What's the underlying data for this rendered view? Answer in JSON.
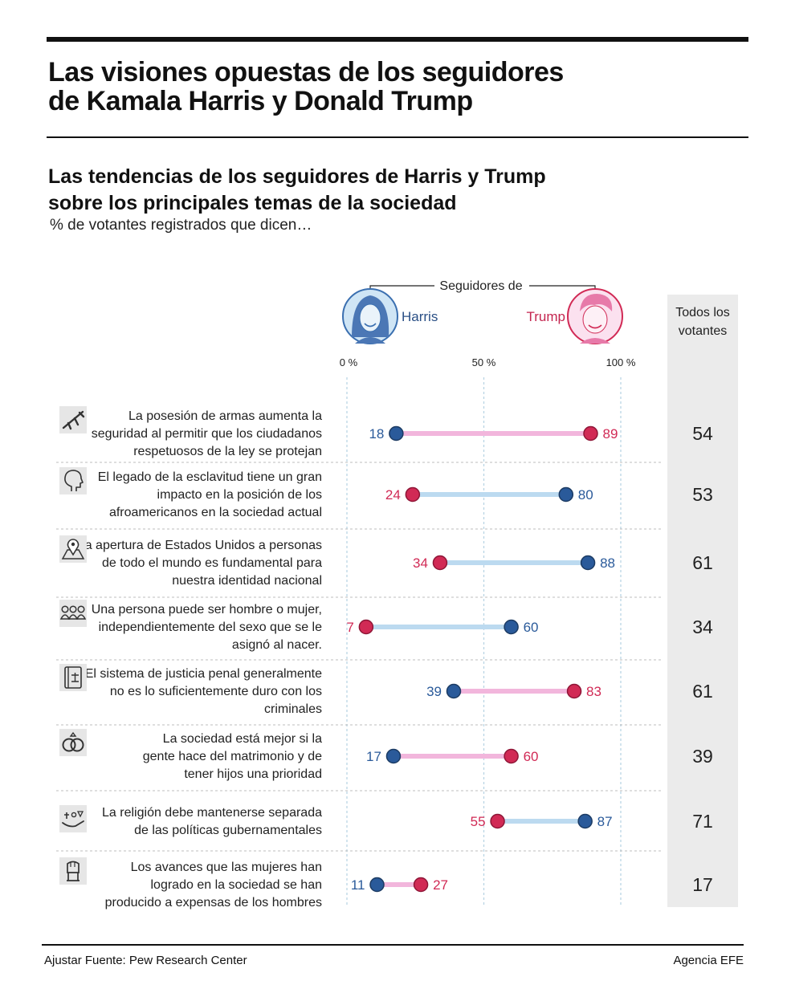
{
  "header": {
    "title_line1": "Las visiones opuestas de los seguidores",
    "title_line2": "de Kamala Harris y Donald Trump",
    "subtitle_line1": "Las tendencias de los seguidores de Harris y Trump",
    "subtitle_line2": "sobre los principales temas de la sociedad",
    "subnote": "% de votantes registrados que dicen…"
  },
  "footer": {
    "source": "Ajustar Fuente: Pew Research Center",
    "agency": "Agencia EFE"
  },
  "colors": {
    "harris": "#2a5a9a",
    "trump": "#d12a55",
    "harris_bar": "#bcdaf0",
    "trump_bar": "#f2b6dc",
    "total_panel": "#ebebeb",
    "icon_bg": "#e6e6e6"
  },
  "chart_data": {
    "type": "dot-range",
    "group_label": "Seguidores de",
    "series": [
      {
        "name": "Harris",
        "values": [
          18,
          80,
          88,
          60,
          39,
          17,
          87,
          11
        ]
      },
      {
        "name": "Trump",
        "values": [
          89,
          24,
          34,
          7,
          83,
          60,
          55,
          27
        ]
      }
    ],
    "total_header": [
      "Todos los",
      "votantes"
    ],
    "total_values": [
      54,
      53,
      61,
      34,
      61,
      39,
      71,
      17
    ],
    "xlim": [
      0,
      100
    ],
    "x_ticks": [
      "0 %",
      "50 %",
      "100 %"
    ],
    "gridlines": true,
    "categories": [
      {
        "lines": [
          "La posesión de armas aumenta la",
          "seguridad al permitir que los ciudadanos",
          "respetuosos de la ley se protejan"
        ],
        "icon": "rifle-icon"
      },
      {
        "lines": [
          "El legado de la esclavitud tiene un gran",
          "impacto en la posición de los",
          "afroamericanos en la sociedad actual"
        ],
        "icon": "head-silhouette-icon"
      },
      {
        "lines": [
          "La apertura de Estados Unidos a personas",
          "de todo el mundo es fundamental para",
          "nuestra identidad nacional"
        ],
        "icon": "map-pin-icon"
      },
      {
        "lines": [
          "Una persona puede ser hombre o mujer,",
          "independientemente del sexo que se le",
          "asignó al nacer."
        ],
        "icon": "people-group-icon"
      },
      {
        "lines": [
          "El sistema de justicia penal generalmente",
          "no es lo suficientemente duro con los",
          "criminales"
        ],
        "icon": "law-book-icon"
      },
      {
        "lines": [
          "La sociedad está mejor si la",
          "gente hace del matrimonio y de",
          "tener hijos una prioridad"
        ],
        "icon": "wedding-rings-icon"
      },
      {
        "lines": [
          "La religión debe mantenerse separada",
          "de las políticas gubernamentales"
        ],
        "icon": "religion-hand-icon"
      },
      {
        "lines": [
          "Los avances que las mujeres han",
          "logrado en la sociedad se han",
          "producido a expensas de los hombres"
        ],
        "icon": "raised-fist-icon"
      }
    ]
  }
}
